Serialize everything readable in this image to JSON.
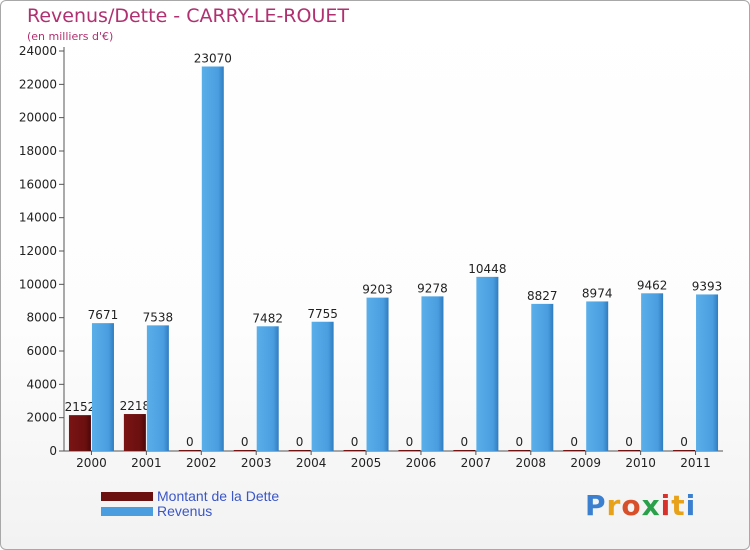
{
  "header": {
    "title": "Revenus/Dette - CARRY-LE-ROUET",
    "subtitle": "(en milliers d'€)"
  },
  "legend": {
    "debt_label": "Montant de la Dette",
    "revenue_label": "Revenus"
  },
  "logo": {
    "letters": [
      "P",
      "r",
      "o",
      "x",
      "i",
      "t",
      "i"
    ],
    "colors": [
      "#3a7fd0",
      "#e8a21a",
      "#d8502a",
      "#2aa04a",
      "#d8302a",
      "#e8a21a",
      "#3a7fd0"
    ]
  },
  "colors": {
    "debt": "#6b0f0f",
    "revenue": "#4a9ee0",
    "axis": "#555555",
    "grid_tick": "#333333"
  },
  "chart_data": {
    "type": "bar",
    "title": "Revenus/Dette - CARRY-LE-ROUET",
    "ylabel": "(en milliers d'€)",
    "xlabel": "",
    "ylim": [
      0,
      24000
    ],
    "yticks": [
      0,
      2000,
      4000,
      6000,
      8000,
      10000,
      12000,
      14000,
      16000,
      18000,
      20000,
      22000,
      24000
    ],
    "categories": [
      "2000",
      "2001",
      "2002",
      "2003",
      "2004",
      "2005",
      "2006",
      "2007",
      "2008",
      "2009",
      "2010",
      "2011"
    ],
    "series": [
      {
        "name": "Montant de la Dette",
        "values": [
          2152,
          2218,
          0,
          0,
          0,
          0,
          0,
          0,
          0,
          0,
          0,
          0
        ]
      },
      {
        "name": "Revenus",
        "values": [
          7671,
          7538,
          23070,
          7482,
          7755,
          9203,
          9278,
          10448,
          8827,
          8974,
          9462,
          9393
        ]
      }
    ],
    "value_labels": [
      [
        "2152",
        "2218",
        "0",
        "0",
        "0",
        "0",
        "0",
        "0",
        "0",
        "0",
        "0",
        "0"
      ],
      [
        "7671",
        "7538",
        "23070",
        "7482",
        "7755",
        "9203",
        "9278",
        "10448",
        "8827",
        "8974",
        "9462",
        "9393"
      ]
    ]
  }
}
